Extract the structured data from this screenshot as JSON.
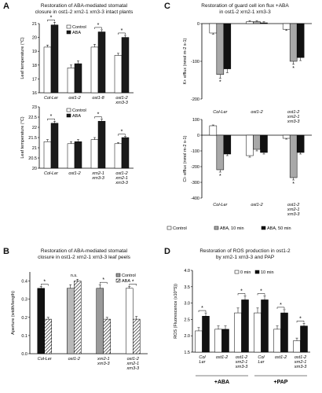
{
  "panels": {
    "A": {
      "letter": "A",
      "title_line1": "Restoration of ABA-mediated stomatal",
      "title_line2": "closure in ost1-2 xrn2-1 xrn3-3 intact plants"
    },
    "B": {
      "letter": "B",
      "title_line1": "Restoration of ABA-mediated stomatal",
      "title_line2": "closure in ost1-2 xrn2-1 xrn3-3 leaf peels"
    },
    "C": {
      "letter": "C",
      "title_line1": "Restoration of guard cell ion flux +ABA",
      "title_line2": "in ost1-2 xrn2-1 xrn3-3"
    },
    "D": {
      "letter": "D",
      "title_line1": "Restoration of ROS production in ost1-2",
      "title_line2": "by xrn2-1 xrn3-3 and PAP"
    }
  },
  "chart_data": [
    {
      "id": "A-top",
      "type": "bar",
      "categories": [
        "Col-Ler",
        "ost1-2",
        "ost1-8",
        "ost1-2\nxrn3-3"
      ],
      "series": [
        {
          "name": "Control",
          "values": [
            19.3,
            17.8,
            19.3,
            18.7
          ],
          "errors": [
            0.15,
            0.2,
            0.2,
            0.15
          ],
          "color": "#ffffff"
        },
        {
          "name": "ABA",
          "values": [
            20.9,
            18.1,
            20.4,
            20.0
          ],
          "errors": [
            0.2,
            0.2,
            0.15,
            0.15
          ],
          "color": "#1a1a1a"
        }
      ],
      "significant": [
        true,
        false,
        true,
        true
      ],
      "ylabel": "Leaf temperature (°C)",
      "ylim": [
        16,
        21
      ],
      "yticks": [
        16,
        17,
        18,
        19,
        20,
        21
      ]
    },
    {
      "id": "A-bottom",
      "type": "bar",
      "categories": [
        "Col-Ler",
        "ost1-2",
        "xrn2-1\nxrn3-3",
        "ost1-2\nxrn2-1\nxrn3-3"
      ],
      "series": [
        {
          "name": "Control",
          "values": [
            21.3,
            21.2,
            21.4,
            21.2
          ],
          "errors": [
            0.1,
            0.1,
            0.1,
            0.05
          ],
          "color": "#ffffff"
        },
        {
          "name": "ABA",
          "values": [
            22.2,
            21.3,
            22.3,
            21.5
          ],
          "errors": [
            0.1,
            0.1,
            0.1,
            0.05
          ],
          "color": "#1a1a1a"
        }
      ],
      "significant": [
        true,
        false,
        true,
        true
      ],
      "ylabel": "Leaf temperature (°C)",
      "ylim": [
        20,
        23
      ],
      "yticks": [
        20,
        20.5,
        21,
        21.5,
        22,
        22.5,
        23
      ]
    },
    {
      "id": "B",
      "type": "bar",
      "categories": [
        "Col-Ler",
        "ost1-2",
        "xrn2-1\nxrn3-3",
        "ost1-2\nxrn2-1\nxrn3-3"
      ],
      "series": [
        {
          "name": "Control",
          "values": [
            0.36,
            0.36,
            0.36,
            0.36
          ],
          "errors": [
            0.01,
            0.02,
            0.02,
            0.01
          ],
          "colors": [
            "#111111",
            "#b8b8b8",
            "#9a9a9a",
            "#ffffff"
          ]
        },
        {
          "name": "ABA",
          "values": [
            0.19,
            0.4,
            0.19,
            0.19
          ],
          "errors": [
            0.01,
            0.01,
            0.01,
            0.015
          ],
          "pattern": "hatch"
        }
      ],
      "significant": [
        true,
        false,
        true,
        true
      ],
      "annotation": "n.s.",
      "ylabel": "Aperture (width/length)",
      "ylim": [
        0.0,
        0.45
      ],
      "yticks": [
        0.0,
        0.1,
        0.2,
        0.3,
        0.4
      ],
      "ytick_labels": [
        "0.0",
        "0.1",
        "0.2",
        "0.3",
        "0.4"
      ]
    },
    {
      "id": "C-top",
      "type": "bar",
      "categories": [
        "Col-Ler",
        "ost1-2",
        "ost1-2\nxrn2-1\nxrn3-3"
      ],
      "series": [
        {
          "name": "Control",
          "values": [
            -25,
            5,
            -15
          ],
          "errors": [
            3,
            3,
            3
          ],
          "color": "#ffffff"
        },
        {
          "name": "ABA, 10 min",
          "values": [
            -135,
            5,
            -100
          ],
          "errors": [
            10,
            3,
            8
          ],
          "color": "#a8a8a8"
        },
        {
          "name": "ABA, 50 min",
          "values": [
            -120,
            2,
            -90
          ],
          "errors": [
            10,
            3,
            8
          ],
          "color": "#111111"
        }
      ],
      "significant": [
        true,
        false,
        true
      ],
      "ylabel": "K+ efflux (nmol m-2 s-1)",
      "ylim": [
        -200,
        0
      ],
      "yticks": [
        -200,
        -100,
        0
      ],
      "ytick_labels": [
        "-200",
        "-100",
        "0"
      ]
    },
    {
      "id": "C-bottom",
      "type": "bar",
      "categories": [
        "Col-Ler",
        "ost1-2",
        "ost1-2\nxrn2-1\nxrn3-3"
      ],
      "series": [
        {
          "name": "Control",
          "values": [
            60,
            -130,
            -20
          ],
          "errors": [
            5,
            10,
            5
          ],
          "color": "#ffffff"
        },
        {
          "name": "ABA, 10 min",
          "values": [
            -220,
            -90,
            -270
          ],
          "errors": [
            15,
            10,
            15
          ],
          "color": "#a8a8a8"
        },
        {
          "name": "ABA, 50 min",
          "values": [
            -120,
            -110,
            -110
          ],
          "errors": [
            10,
            10,
            10
          ],
          "color": "#111111"
        }
      ],
      "significant": [
        true,
        false,
        true
      ],
      "ylabel": "Cl- efflux (nmol m-2 s-1)",
      "ylim": [
        -400,
        100
      ],
      "yticks": [
        -400,
        -300,
        -200,
        -100,
        0,
        100
      ],
      "ytick_labels": [
        "-400",
        "-300",
        "-200",
        "-100",
        "0",
        "100"
      ],
      "legend": [
        "Control",
        "ABA, 10 min",
        "ABA, 50 min"
      ]
    },
    {
      "id": "D",
      "type": "bar",
      "categories": [
        "Col\nLer",
        "ost1-2",
        "ost1-2\nxrn2-1\nxrn3-3",
        "Col\nLer",
        "ost1-2",
        "ost1-2\nxrn2-1\nxrn3-3"
      ],
      "groups": [
        {
          "label": "+ABA",
          "span": [
            0,
            2
          ]
        },
        {
          "label": "+PAP",
          "span": [
            3,
            5
          ]
        }
      ],
      "series": [
        {
          "name": "0 min",
          "values": [
            2.15,
            2.2,
            2.7,
            2.7,
            2.2,
            1.85
          ],
          "errors": [
            0.1,
            0.1,
            0.15,
            0.15,
            0.1,
            0.08
          ],
          "color": "#ffffff"
        },
        {
          "name": "10 min",
          "values": [
            2.6,
            2.2,
            3.1,
            3.1,
            2.7,
            2.3
          ],
          "errors": [
            0.1,
            0.1,
            0.12,
            0.12,
            0.1,
            0.08
          ],
          "color": "#111111"
        }
      ],
      "significant": [
        true,
        false,
        true,
        true,
        true,
        true
      ],
      "ylabel": "ROS (Fluorescence (x10^5))",
      "ylim": [
        1.5,
        4.0
      ],
      "yticks": [
        1.5,
        2.0,
        2.5,
        3.0,
        3.5,
        4.0
      ],
      "ytick_labels": [
        "1.5",
        "2.0",
        "2.5",
        "3.0",
        "3.5",
        "4.0"
      ]
    }
  ]
}
